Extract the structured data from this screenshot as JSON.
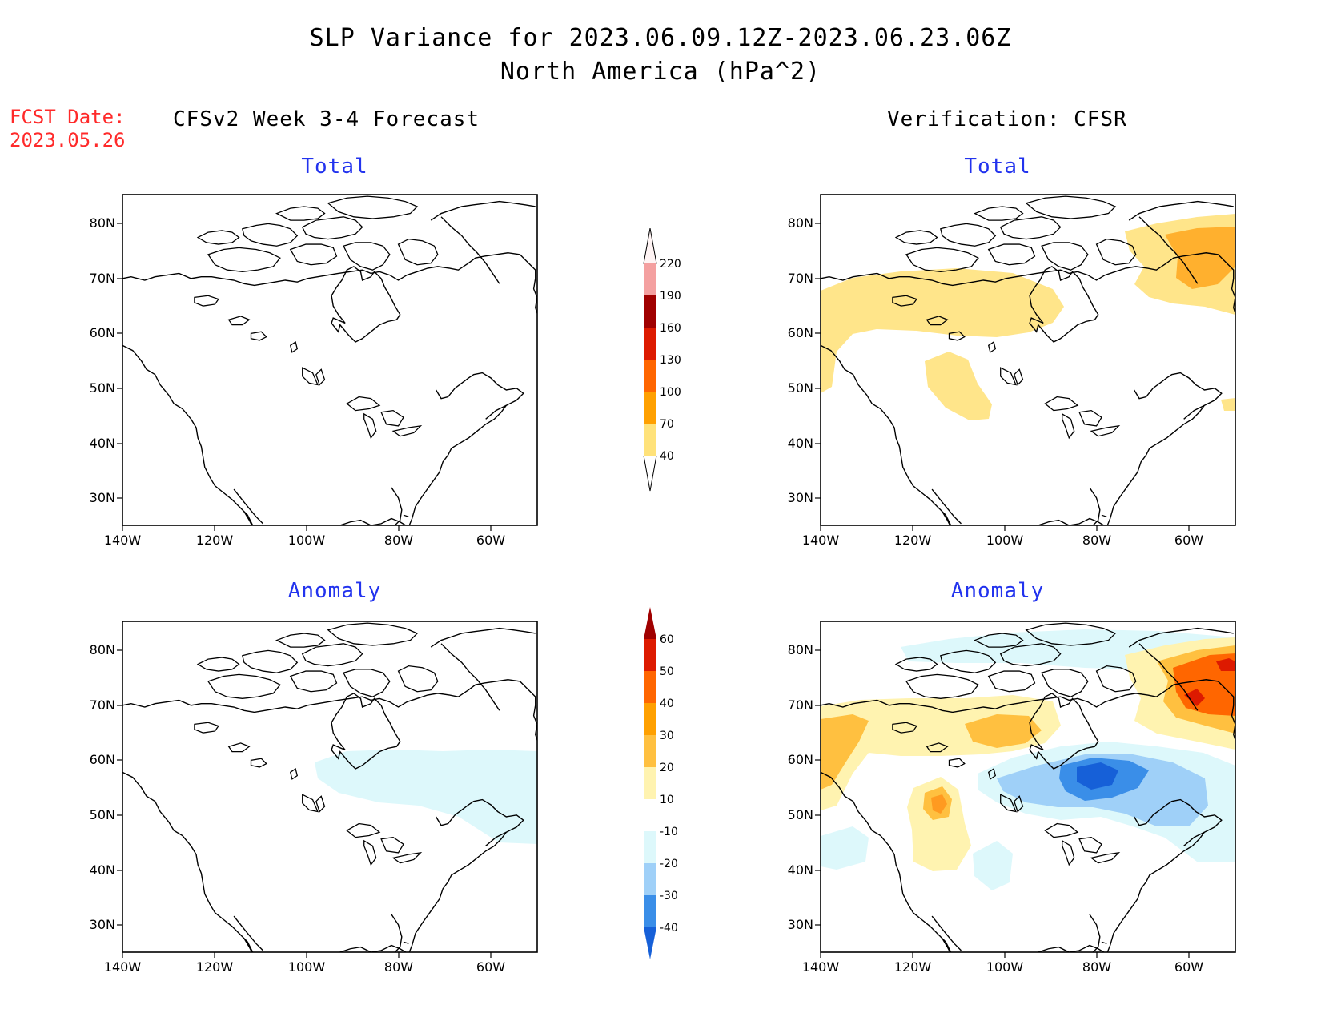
{
  "title": {
    "line1": "SLP Variance for 2023.06.09.12Z-2023.06.23.06Z",
    "line2": "North America (hPa^2)"
  },
  "forecast_date": {
    "label": "FCST Date:",
    "value": "2023.05.26"
  },
  "column_headers": {
    "left": "CFSv2 Week 3-4 Forecast",
    "right": "Verification: CFSR"
  },
  "panels": [
    {
      "id": "forecast-total",
      "title": "Total",
      "shading": []
    },
    {
      "id": "verification-total",
      "title": "Total",
      "shading": [
        "40-70 over Arctic coast, Alaska and Canadian Prairies",
        "70-130 near Greenland/Baffin Bay"
      ]
    },
    {
      "id": "forecast-anomaly",
      "title": "Anomaly",
      "shading": [
        "-10 to -20 over Hudson Bay and Quebec"
      ]
    },
    {
      "id": "verification-anomaly",
      "title": "Anomaly",
      "shading": [
        "10-60 near Greenland",
        "-10 to -40 over Hudson Bay",
        "10-30 over Prairies and Alaska"
      ]
    }
  ],
  "map_axes": {
    "lat_labels": [
      "80N",
      "70N",
      "60N",
      "50N",
      "40N",
      "30N"
    ],
    "lon_labels": [
      "140W",
      "120W",
      "100W",
      "80W",
      "60W"
    ]
  },
  "colorbars": {
    "total": {
      "labels": [
        "220",
        "190",
        "160",
        "130",
        "100",
        "70",
        "40"
      ],
      "colors": [
        "#fde6e6",
        "#f4a0a0",
        "#a00000",
        "#dd1a00",
        "#ff6600",
        "#ffa000",
        "#ffe27a"
      ]
    },
    "anomaly": {
      "labels": [
        "60",
        "50",
        "40",
        "30",
        "20",
        "10",
        "-10",
        "-20",
        "-30",
        "-40"
      ],
      "colors": [
        "#a00000",
        "#dd1a00",
        "#ff6600",
        "#ffa000",
        "#ffc040",
        "#fff3b0",
        "#ffffff",
        "#ddf8fb",
        "#9fd0f8",
        "#3a8ee8",
        "#1660d8"
      ]
    }
  }
}
